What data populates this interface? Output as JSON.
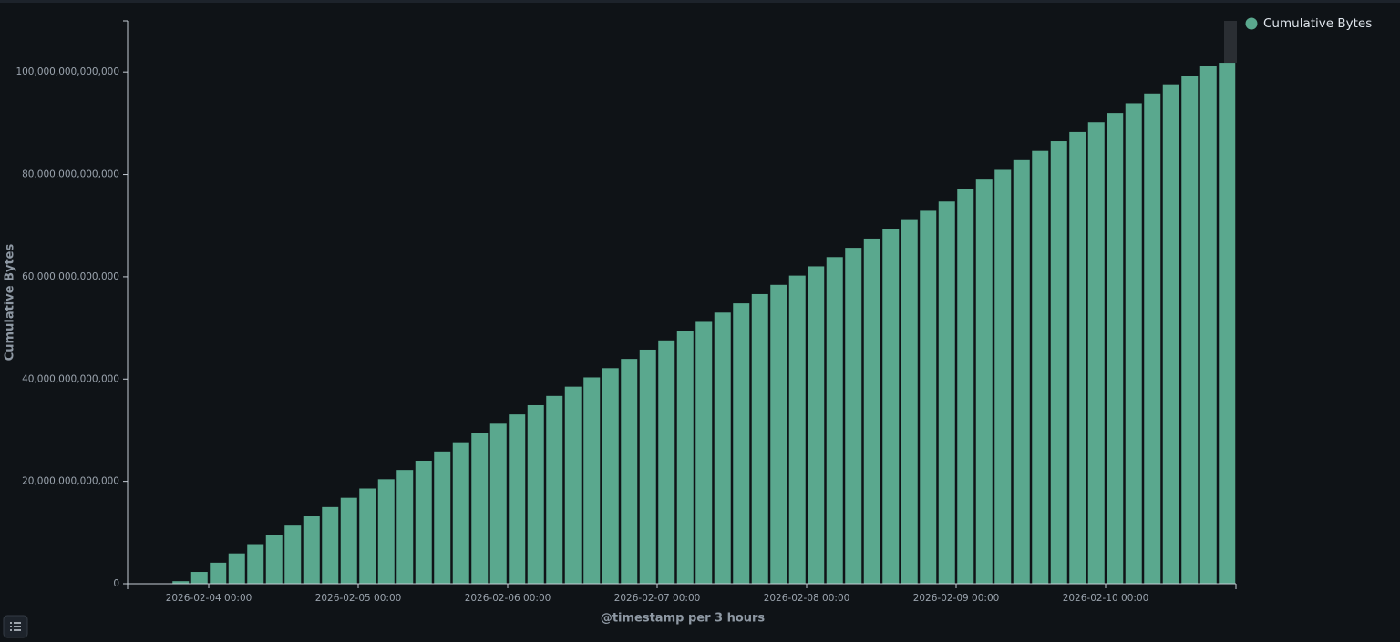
{
  "chart_data": {
    "type": "bar",
    "x_title": "@timestamp per 3 hours",
    "y_title": "Cumulative Bytes",
    "categories": [
      null,
      null,
      "2026-02-04 00:00",
      null,
      null,
      null,
      null,
      null,
      null,
      null,
      "2026-02-05 00:00",
      null,
      null,
      null,
      null,
      null,
      null,
      null,
      "2026-02-06 00:00",
      null,
      null,
      null,
      null,
      null,
      null,
      null,
      "2026-02-07 00:00",
      null,
      null,
      null,
      null,
      null,
      null,
      null,
      "2026-02-08 00:00",
      null,
      null,
      null,
      null,
      null,
      null,
      null,
      "2026-02-09 00:00",
      null,
      null,
      null,
      null,
      null,
      null,
      null,
      "2026-02-10 00:00",
      null,
      null,
      null,
      null,
      null,
      null
    ],
    "series": [
      {
        "name": "Cumulative Bytes",
        "color": "#5aa88e",
        "values": [
          500000000000.0,
          2310000000000.0,
          4120000000000.0,
          5930000000000.0,
          7740000000000.0,
          9550000000000.0,
          11360000000000.0,
          13170000000000.0,
          14980000000000.0,
          16790000000000.0,
          18600000000000.0,
          20410000000000.0,
          22220000000000.0,
          24030000000000.0,
          25840000000000.0,
          27650000000000.0,
          29460000000000.0,
          31270000000000.0,
          33080000000000.0,
          34890000000000.0,
          36700000000000.0,
          38510000000000.0,
          40320000000000.0,
          42130000000000.0,
          43940000000000.0,
          45750000000000.0,
          47560000000000.0,
          49370000000000.0,
          51180000000000.0,
          52990000000000.0,
          54800000000000.0,
          56610000000000.0,
          58420000000000.0,
          60230000000000.0,
          62040000000000.0,
          63850000000000.0,
          65660000000000.0,
          67470000000000.0,
          69280000000000.0,
          71090000000000.0,
          72900000000000.0,
          74710000000000.0,
          77200000000000.0,
          79000000000000.0,
          80900000000000.0,
          82800000000000.0,
          84600000000000.0,
          86500000000000.0,
          88300000000000.0,
          90200000000000.0,
          92000000000000.0,
          93900000000000.0,
          95800000000000.0,
          97600000000000.0,
          99300000000000.0,
          101100000000000.0,
          101800000000000.0
        ]
      }
    ],
    "ylim": [
      0,
      110000000000000.0
    ],
    "yticks": [
      0,
      {
        "value": 20000000000000.0,
        "label": "20,000,000,000,000"
      },
      {
        "value": 40000000000000.0,
        "label": "40,000,000,000,000"
      },
      {
        "value": 60000000000000.0,
        "label": "60,000,000,000,000"
      },
      {
        "value": 80000000000000.0,
        "label": "80,000,000,000,000"
      },
      {
        "value": 100000000000000.0,
        "label": "100,000,000,000,000"
      }
    ],
    "legend": "top-right"
  }
}
